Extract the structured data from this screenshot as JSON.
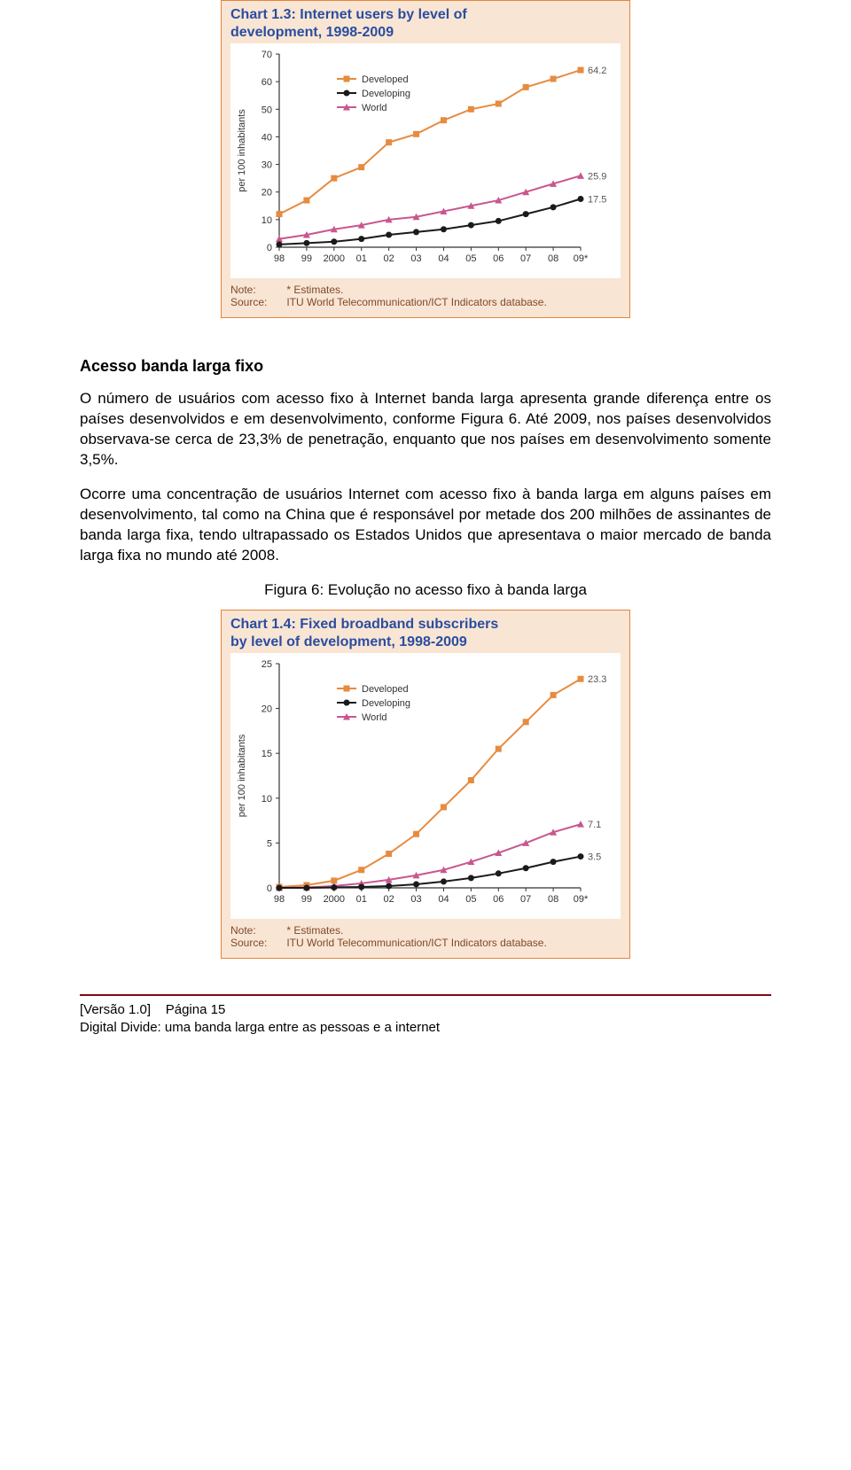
{
  "chart1": {
    "type": "line",
    "box_border_color": "#e2853a",
    "box_bg_color": "#f9e5d4",
    "title_color": "#2a4da0",
    "title_line1": "Chart 1.3: Internet users by level of",
    "title_line2": "development, 1998-2009",
    "plot_bg": "#ffffff",
    "axis_color": "#333333",
    "tick_color": "#333333",
    "tick_fontsize": 11,
    "ylabel": "per 100 inhabitants",
    "ylabel_fontsize": 11,
    "yticks": [
      0,
      10,
      20,
      30,
      40,
      50,
      60,
      70
    ],
    "ylim": [
      0,
      70
    ],
    "xticks": [
      "98",
      "99",
      "2000",
      "01",
      "02",
      "03",
      "04",
      "05",
      "06",
      "07",
      "08",
      "09*"
    ],
    "legend_items": [
      {
        "label": "Developed",
        "color": "#e78b3f",
        "marker": "square"
      },
      {
        "label": "Developing",
        "color": "#1a1a1a",
        "marker": "circle"
      },
      {
        "label": "World",
        "color": "#c9568f",
        "marker": "triangle"
      }
    ],
    "legend_fontsize": 11,
    "series": [
      {
        "name": "Developed",
        "color": "#e78b3f",
        "marker": "square",
        "line_width": 2,
        "values": [
          12,
          17,
          25,
          29,
          38,
          41,
          46,
          50,
          52,
          58,
          61,
          64.2
        ],
        "end_label": "64.2",
        "end_label_color": "#555555"
      },
      {
        "name": "World",
        "color": "#c9568f",
        "marker": "triangle",
        "line_width": 2,
        "values": [
          3,
          4.5,
          6.5,
          8,
          10,
          11,
          13,
          15,
          17,
          20,
          23,
          25.9
        ],
        "end_label": "25.9",
        "end_label_color": "#555555"
      },
      {
        "name": "Developing",
        "color": "#1a1a1a",
        "marker": "circle",
        "line_width": 2,
        "values": [
          1,
          1.5,
          2,
          3,
          4.5,
          5.5,
          6.5,
          8,
          9.5,
          12,
          14.5,
          17.5
        ],
        "end_label": "17.5",
        "end_label_color": "#555555"
      }
    ],
    "note_label": "Note:",
    "note_text": "* Estimates.",
    "source_label": "Source:",
    "source_text": "ITU World Telecommunication/ICT Indicators database.",
    "note_color": "#7d4a2a"
  },
  "chart2": {
    "type": "line",
    "box_border_color": "#e2853a",
    "box_bg_color": "#f9e5d4",
    "title_color": "#2a4da0",
    "title_line1": "Chart 1.4: Fixed broadband subscribers",
    "title_line2": "by level of development, 1998-2009",
    "plot_bg": "#ffffff",
    "axis_color": "#333333",
    "tick_color": "#333333",
    "tick_fontsize": 11,
    "ylabel": "per 100 inhabitants",
    "ylabel_fontsize": 11,
    "yticks": [
      0,
      5,
      10,
      15,
      20,
      25
    ],
    "ylim": [
      0,
      25
    ],
    "xticks": [
      "98",
      "99",
      "2000",
      "01",
      "02",
      "03",
      "04",
      "05",
      "06",
      "07",
      "08",
      "09*"
    ],
    "legend_items": [
      {
        "label": "Developed",
        "color": "#e78b3f",
        "marker": "square"
      },
      {
        "label": "Developing",
        "color": "#1a1a1a",
        "marker": "circle"
      },
      {
        "label": "World",
        "color": "#c9568f",
        "marker": "triangle"
      }
    ],
    "legend_fontsize": 11,
    "series": [
      {
        "name": "Developed",
        "color": "#e78b3f",
        "marker": "square",
        "line_width": 2,
        "values": [
          0.1,
          0.3,
          0.8,
          2,
          3.8,
          6,
          9,
          12,
          15.5,
          18.5,
          21.5,
          23.3
        ],
        "end_label": "23.3",
        "end_label_color": "#555555"
      },
      {
        "name": "World",
        "color": "#c9568f",
        "marker": "triangle",
        "line_width": 2,
        "values": [
          0,
          0.05,
          0.2,
          0.5,
          0.9,
          1.4,
          2,
          2.9,
          3.9,
          5,
          6.2,
          7.1
        ],
        "end_label": "7.1",
        "end_label_color": "#555555"
      },
      {
        "name": "Developing",
        "color": "#1a1a1a",
        "marker": "circle",
        "line_width": 2,
        "values": [
          0,
          0,
          0.05,
          0.1,
          0.2,
          0.4,
          0.7,
          1.1,
          1.6,
          2.2,
          2.9,
          3.5
        ],
        "end_label": "3.5",
        "end_label_color": "#555555"
      }
    ],
    "note_label": "Note:",
    "note_text": "* Estimates.",
    "source_label": "Source:",
    "source_text": "ITU World Telecommunication/ICT Indicators database.",
    "note_color": "#7d4a2a"
  },
  "text": {
    "heading": "Acesso banda larga fixo",
    "p1": "O número de usuários com acesso fixo à Internet banda larga apresenta grande diferença entre os países desenvolvidos e em desenvolvimento, conforme Figura 6. Até 2009, nos países desenvolvidos observava-se cerca de 23,3% de penetração, enquanto que nos países em desenvolvimento somente 3,5%.",
    "p2": "Ocorre uma concentração de usuários Internet com acesso fixo à banda larga em alguns países em desenvolvimento, tal como na China que é responsável por metade dos 200 milhões de assinantes de banda larga fixa, tendo ultrapassado os Estados Unidos que apresentava o maior mercado de banda larga fixa no mundo até 2008.",
    "fig6_caption": "Figura 6: Evolução no acesso fixo à banda larga"
  },
  "footer": {
    "rule_color": "#7c0b15",
    "line1_a": "[Versão 1.0]",
    "line1_b": "Página 15",
    "line2": "Digital Divide: uma banda larga entre as pessoas e a internet"
  }
}
